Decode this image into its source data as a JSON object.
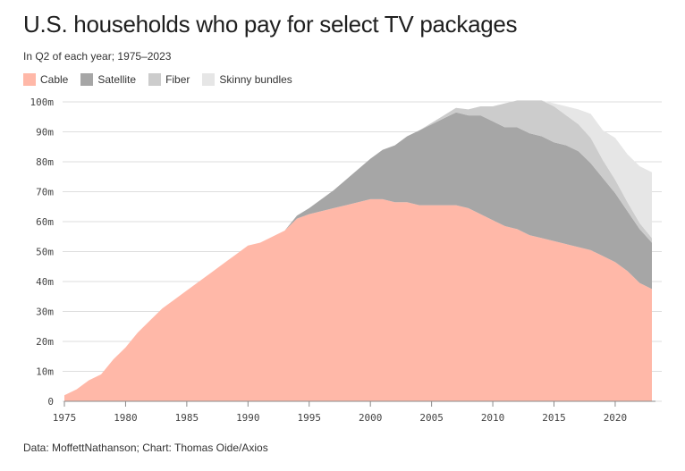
{
  "title": "U.S. households who pay for select TV packages",
  "subtitle": "In Q2 of each year; 1975–2023",
  "footer": "Data: MoffettNathanson; Chart: Thomas Oide/Axios",
  "chart_data": {
    "type": "area",
    "stacked": true,
    "legend_position": "top-left",
    "grid": true,
    "xlim": [
      1975,
      2023
    ],
    "ylim": [
      0,
      100
    ],
    "x_ticks": [
      1975,
      1980,
      1985,
      1990,
      1995,
      2000,
      2005,
      2010,
      2015,
      2020
    ],
    "y_ticks": [
      0,
      10,
      20,
      30,
      40,
      50,
      60,
      70,
      80,
      90,
      100
    ],
    "y_tick_labels": [
      "0",
      "10m",
      "20m",
      "30m",
      "40m",
      "50m",
      "60m",
      "70m",
      "80m",
      "90m",
      "100m"
    ],
    "x": [
      1975,
      1976,
      1977,
      1978,
      1979,
      1980,
      1981,
      1982,
      1983,
      1984,
      1985,
      1986,
      1987,
      1988,
      1989,
      1990,
      1991,
      1992,
      1993,
      1994,
      1995,
      1996,
      1997,
      1998,
      1999,
      2000,
      2001,
      2002,
      2003,
      2004,
      2005,
      2006,
      2007,
      2008,
      2009,
      2010,
      2011,
      2012,
      2013,
      2014,
      2015,
      2016,
      2017,
      2018,
      2019,
      2020,
      2021,
      2022,
      2023
    ],
    "series": [
      {
        "name": "Cable",
        "color": "#ffb8a8",
        "values": [
          2,
          4,
          7,
          9,
          14,
          18,
          23,
          27,
          31,
          34,
          37,
          40,
          43,
          46,
          49,
          52,
          53,
          55,
          57,
          61,
          62.5,
          63.5,
          64.5,
          65.5,
          66.5,
          67.5,
          67.5,
          66.5,
          66.5,
          65.5,
          65.5,
          65.5,
          65.5,
          64.5,
          62.5,
          60.5,
          58.5,
          57.5,
          55.5,
          54.5,
          53.5,
          52.5,
          51.5,
          50.5,
          48.5,
          46.5,
          43.5,
          39.5,
          37.5
        ]
      },
      {
        "name": "Satellite",
        "color": "#a6a6a6",
        "values": [
          0,
          0,
          0,
          0,
          0,
          0,
          0,
          0,
          0,
          0,
          0,
          0,
          0,
          0,
          0,
          0,
          0,
          0,
          0,
          1,
          2,
          4,
          6,
          8.5,
          11,
          13.5,
          16.5,
          19,
          22,
          25,
          27,
          29,
          31,
          31,
          33,
          33,
          33,
          34,
          34,
          34,
          33,
          33,
          32,
          29,
          26,
          23,
          20,
          18,
          15.5
        ]
      },
      {
        "name": "Fiber",
        "color": "#cccccc",
        "values": [
          0,
          0,
          0,
          0,
          0,
          0,
          0,
          0,
          0,
          0,
          0,
          0,
          0,
          0,
          0,
          0,
          0,
          0,
          0,
          0,
          0,
          0,
          0,
          0,
          0,
          0,
          0,
          0,
          0,
          0,
          0.5,
          1,
          1.5,
          2,
          3,
          5,
          8,
          9,
          11,
          12,
          12,
          10,
          9,
          8.5,
          6,
          4.5,
          3,
          2,
          1.5
        ]
      },
      {
        "name": "Skinny bundles",
        "color": "#e6e6e6",
        "values": [
          0,
          0,
          0,
          0,
          0,
          0,
          0,
          0,
          0,
          0,
          0,
          0,
          0,
          0,
          0,
          0,
          0,
          0,
          0,
          0,
          0,
          0,
          0,
          0,
          0,
          0,
          0,
          0,
          0,
          0,
          0,
          0,
          0,
          0,
          0,
          0,
          0,
          0,
          0,
          0,
          1,
          3,
          5,
          8,
          10,
          14,
          16,
          19,
          22
        ]
      }
    ]
  }
}
